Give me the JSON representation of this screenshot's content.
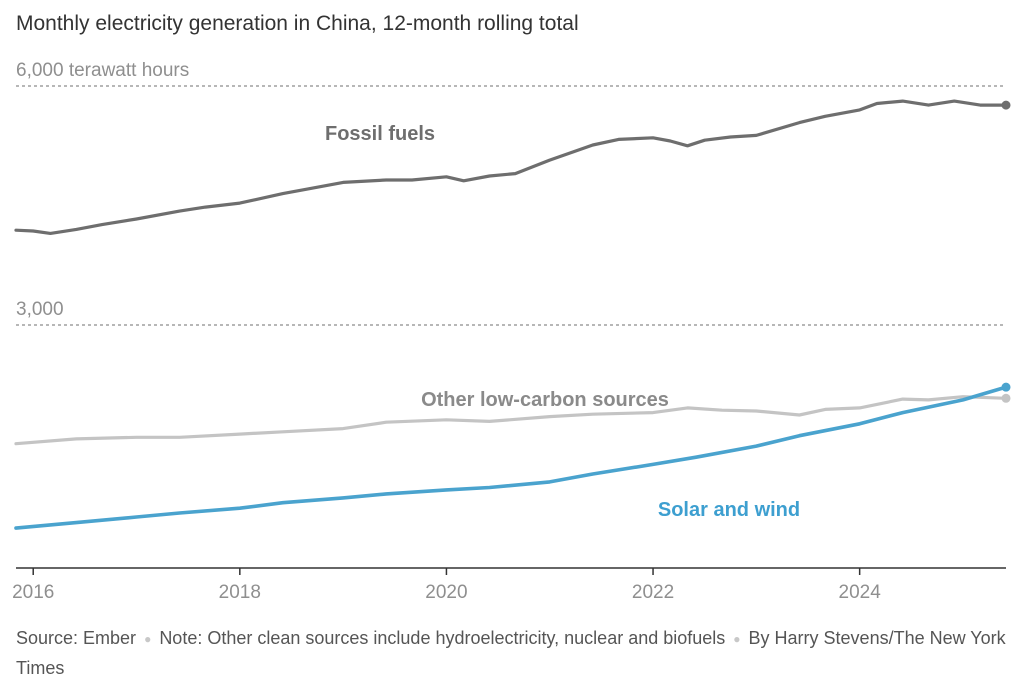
{
  "chart_data": {
    "type": "line",
    "title": "Monthly electricity generation in China, 12-month rolling total",
    "y_unit_label": "6,000 terawatt hours",
    "y_gridlines": [
      {
        "value": 6000,
        "label": "6,000 terawatt hours"
      },
      {
        "value": 3000,
        "label": "3,000"
      }
    ],
    "x_ticks": [
      "2016",
      "2018",
      "2020",
      "2022",
      "2024"
    ],
    "x_range": [
      "2015-11",
      "2025-06"
    ],
    "ylim": [
      0,
      6600
    ],
    "grid": true,
    "legend": "inline labels",
    "series": [
      {
        "name": "Fossil fuels",
        "color": "#6e6e6e",
        "points": [
          [
            "2015-11",
            4190
          ],
          [
            "2016-01",
            4180
          ],
          [
            "2016-03",
            4150
          ],
          [
            "2016-06",
            4200
          ],
          [
            "2016-09",
            4260
          ],
          [
            "2017-01",
            4330
          ],
          [
            "2017-06",
            4430
          ],
          [
            "2017-09",
            4480
          ],
          [
            "2018-01",
            4530
          ],
          [
            "2018-06",
            4650
          ],
          [
            "2018-09",
            4710
          ],
          [
            "2019-01",
            4790
          ],
          [
            "2019-06",
            4820
          ],
          [
            "2019-09",
            4820
          ],
          [
            "2020-01",
            4860
          ],
          [
            "2020-03",
            4810
          ],
          [
            "2020-06",
            4870
          ],
          [
            "2020-09",
            4900
          ],
          [
            "2021-01",
            5070
          ],
          [
            "2021-06",
            5260
          ],
          [
            "2021-09",
            5330
          ],
          [
            "2022-01",
            5350
          ],
          [
            "2022-03",
            5310
          ],
          [
            "2022-05",
            5250
          ],
          [
            "2022-07",
            5320
          ],
          [
            "2022-10",
            5360
          ],
          [
            "2023-01",
            5380
          ],
          [
            "2023-06",
            5540
          ],
          [
            "2023-09",
            5620
          ],
          [
            "2024-01",
            5700
          ],
          [
            "2024-03",
            5780
          ],
          [
            "2024-06",
            5810
          ],
          [
            "2024-09",
            5760
          ],
          [
            "2024-12",
            5810
          ],
          [
            "2025-03",
            5760
          ],
          [
            "2025-06",
            5760
          ]
        ]
      },
      {
        "name": "Other low-carbon sources",
        "color": "#c4c4c4",
        "points": [
          [
            "2015-11",
            1510
          ],
          [
            "2016-06",
            1570
          ],
          [
            "2017-01",
            1590
          ],
          [
            "2017-06",
            1590
          ],
          [
            "2018-01",
            1630
          ],
          [
            "2018-06",
            1660
          ],
          [
            "2019-01",
            1700
          ],
          [
            "2019-06",
            1780
          ],
          [
            "2020-01",
            1810
          ],
          [
            "2020-06",
            1790
          ],
          [
            "2021-01",
            1850
          ],
          [
            "2021-06",
            1880
          ],
          [
            "2022-01",
            1900
          ],
          [
            "2022-05",
            1960
          ],
          [
            "2022-09",
            1930
          ],
          [
            "2023-01",
            1920
          ],
          [
            "2023-06",
            1870
          ],
          [
            "2023-09",
            1940
          ],
          [
            "2024-01",
            1960
          ],
          [
            "2024-06",
            2070
          ],
          [
            "2024-09",
            2060
          ],
          [
            "2025-01",
            2100
          ],
          [
            "2025-06",
            2080
          ]
        ]
      },
      {
        "name": "Solar and wind",
        "color": "#4aa3ce",
        "points": [
          [
            "2015-11",
            450
          ],
          [
            "2016-06",
            520
          ],
          [
            "2017-01",
            590
          ],
          [
            "2017-06",
            640
          ],
          [
            "2018-01",
            700
          ],
          [
            "2018-06",
            770
          ],
          [
            "2019-01",
            830
          ],
          [
            "2019-06",
            880
          ],
          [
            "2020-01",
            930
          ],
          [
            "2020-06",
            960
          ],
          [
            "2021-01",
            1030
          ],
          [
            "2021-06",
            1130
          ],
          [
            "2022-01",
            1250
          ],
          [
            "2022-06",
            1340
          ],
          [
            "2023-01",
            1480
          ],
          [
            "2023-06",
            1610
          ],
          [
            "2024-01",
            1760
          ],
          [
            "2024-06",
            1900
          ],
          [
            "2025-01",
            2060
          ],
          [
            "2025-06",
            2220
          ]
        ]
      }
    ]
  },
  "footer": {
    "source": "Source: Ember",
    "note": "Note: Other clean sources include hydroelectricity, nuclear and biofuels",
    "byline": "By Harry Stevens/The New York Times"
  },
  "colors": {
    "gridline": "#8c8c8c",
    "axis": "#333333",
    "label_gray": "#8f8f8f",
    "fossil": "#6e6e6e",
    "other": "#c4c4c4",
    "solar": "#4aa3ce",
    "other_label": "#8a8a8a",
    "solar_label": "#3d9fd0"
  }
}
